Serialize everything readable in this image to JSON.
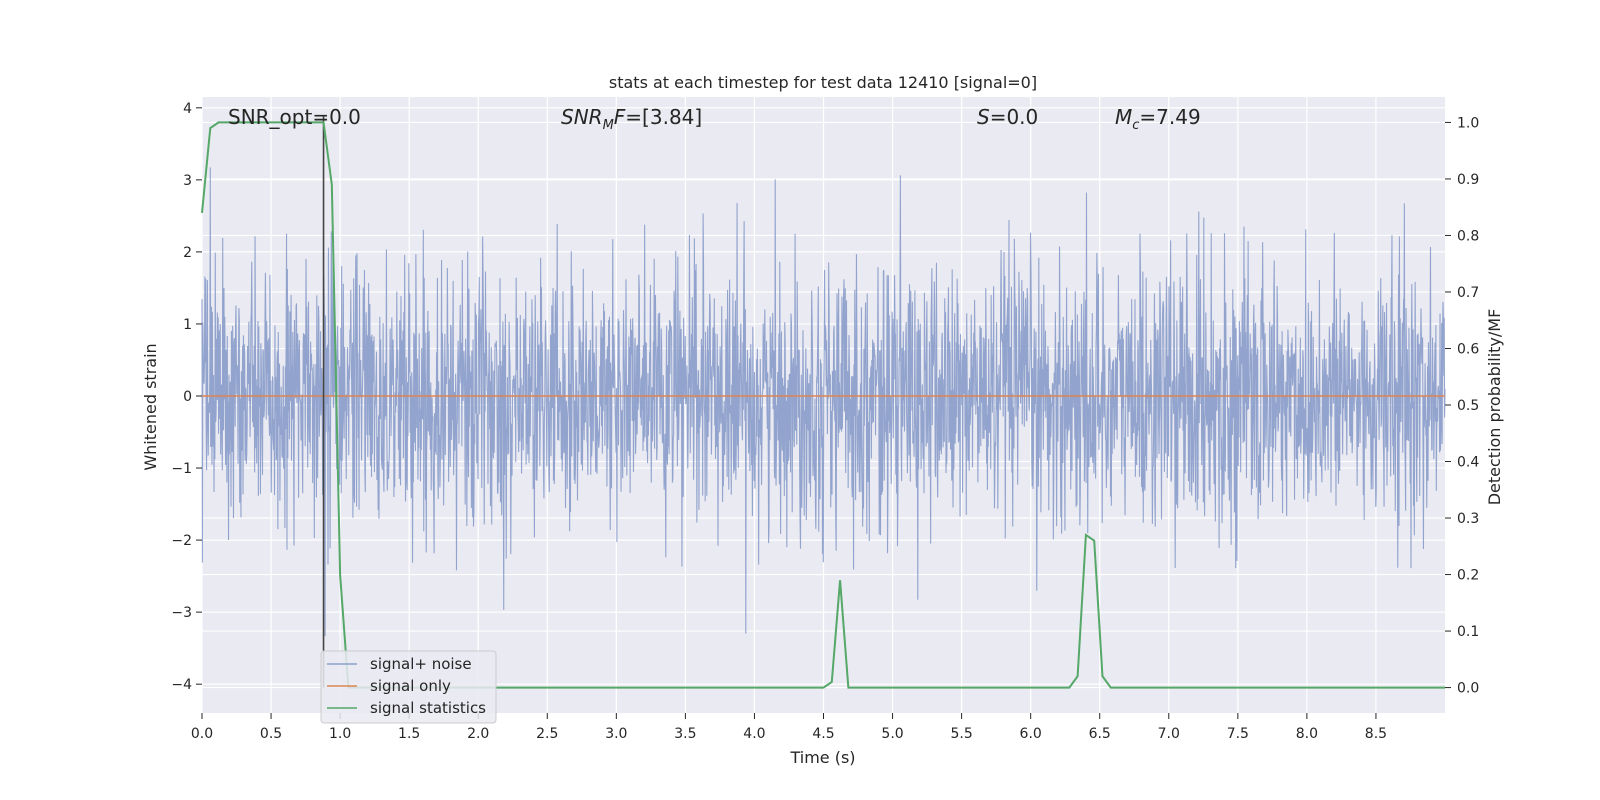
{
  "chart_data": {
    "type": "line",
    "title": "stats at each timestep for test data 12410 [signal=0]",
    "xlabel": "Time (s)",
    "ylabel": "Whitened strain",
    "y2label": "Detection probability/MF",
    "xlim": [
      0,
      9
    ],
    "ylim": [
      -4.4,
      4.15
    ],
    "y2lim": [
      -0.045,
      1.045
    ],
    "xticks": [
      "0.0",
      "0.5",
      "1.0",
      "1.5",
      "2.0",
      "2.5",
      "3.0",
      "3.5",
      "4.0",
      "4.5",
      "5.0",
      "5.5",
      "6.0",
      "6.5",
      "7.0",
      "7.5",
      "8.0",
      "8.5"
    ],
    "yticks": [
      "−4",
      "−3",
      "−2",
      "−1",
      "0",
      "1",
      "2",
      "3",
      "4"
    ],
    "y2ticks": [
      "0.0",
      "0.1",
      "0.2",
      "0.3",
      "0.4",
      "0.5",
      "0.6",
      "0.7",
      "0.8",
      "0.9",
      "1.0"
    ],
    "grid": true,
    "legend_position": "lower-left",
    "colors": {
      "noise": "#8da0cb",
      "signal_only": "#dd8452",
      "statistics": "#55a868",
      "vline": "#444444",
      "background": "#eaeaf2"
    },
    "annotations": {
      "snr_opt": "SNR_opt=0.0",
      "snr_mf_italic": "SNR",
      "snr_mf_sub": "M",
      "snr_mf_italic2": "F",
      "snr_mf_value": "=[3.84]",
      "s_italic": "S",
      "s_value": "=0.0",
      "mc_italic": "M",
      "mc_sub": "c",
      "mc_value": "=7.49"
    },
    "vertical_line_x": 0.88,
    "series": [
      {
        "name": "signal+ noise",
        "kind": "noise",
        "amplitude_sigma": 0.9,
        "x_range": [
          0,
          9
        ]
      },
      {
        "name": "signal only",
        "x": [
          0,
          9
        ],
        "y": [
          0,
          0
        ]
      },
      {
        "name": "signal statistics",
        "axis": "right",
        "x": [
          0.0,
          0.06,
          0.12,
          0.18,
          0.24,
          0.3,
          0.36,
          0.42,
          0.48,
          0.54,
          0.6,
          0.66,
          0.72,
          0.78,
          0.84,
          0.88,
          0.94,
          1.0,
          1.06,
          1.12,
          4.5,
          4.56,
          4.62,
          4.68,
          4.74,
          4.8,
          6.28,
          6.34,
          6.4,
          6.46,
          6.52,
          6.58,
          6.64,
          6.7,
          9.0
        ],
        "y": [
          0.84,
          0.99,
          1.0,
          1.0,
          1.0,
          1.0,
          1.0,
          1.0,
          1.0,
          1.0,
          1.0,
          1.0,
          1.0,
          1.0,
          1.0,
          1.0,
          0.89,
          0.2,
          0.0,
          0.0,
          0.0,
          0.01,
          0.19,
          0.0,
          0.0,
          0.0,
          0.0,
          0.02,
          0.27,
          0.26,
          0.02,
          0.0,
          0.0,
          0.0,
          0.0
        ]
      }
    ]
  }
}
